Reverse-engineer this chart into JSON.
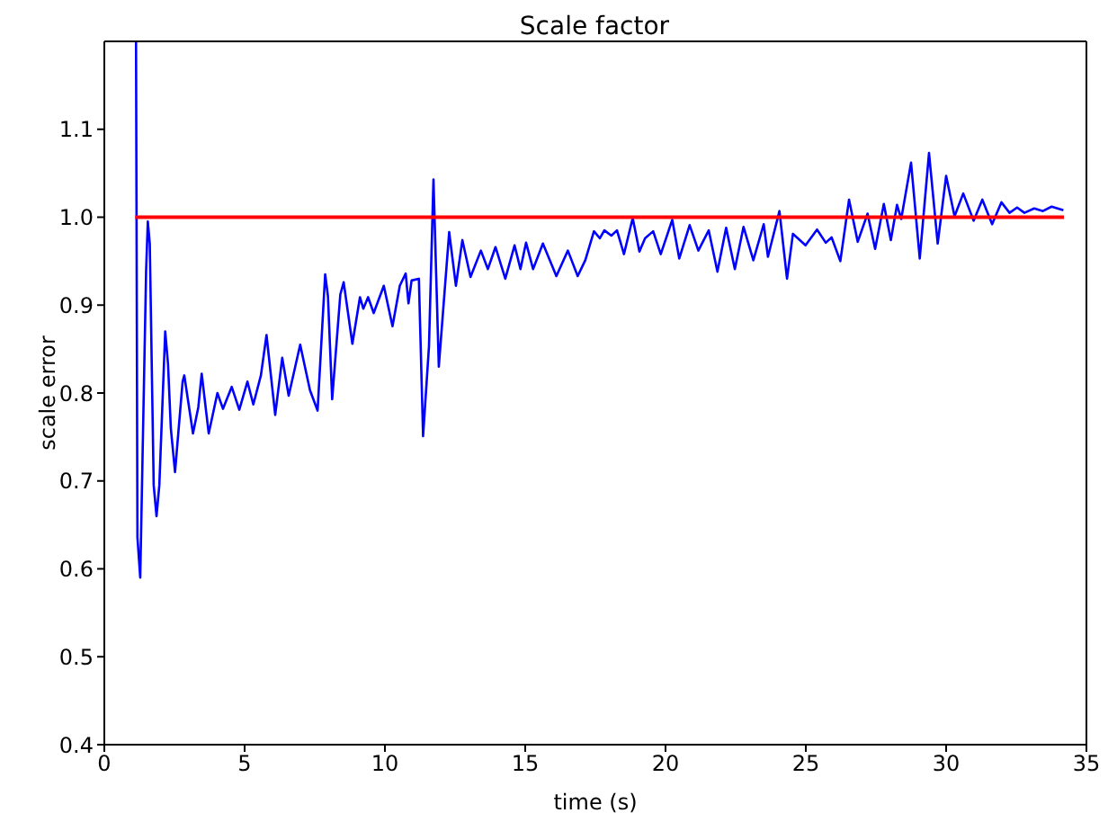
{
  "chart_data": {
    "type": "line",
    "title": "Scale factor",
    "xlabel": "time (s)",
    "ylabel": "scale error",
    "xlim": [
      0,
      35
    ],
    "ylim": [
      0.4,
      1.2
    ],
    "xticks": [
      0,
      5,
      10,
      15,
      20,
      25,
      30,
      35
    ],
    "yticks": [
      0.4,
      0.5,
      0.6,
      0.7,
      0.8,
      0.9,
      {
        "value": 1.0,
        "label": "1.0"
      },
      1.1
    ],
    "series": [
      {
        "color": "#0000ff",
        "x": [
          1.13,
          1.18,
          1.28,
          1.49,
          1.55,
          1.62,
          1.76,
          1.86,
          1.96,
          2.17,
          2.27,
          2.37,
          2.52,
          2.79,
          2.85,
          3.16,
          3.35,
          3.47,
          3.72,
          4.03,
          4.23,
          4.54,
          4.81,
          5.1,
          5.31,
          5.58,
          5.78,
          6.09,
          6.34,
          6.57,
          6.98,
          7.33,
          7.6,
          7.87,
          7.97,
          8.12,
          8.41,
          8.53,
          8.84,
          9.11,
          9.23,
          9.4,
          9.6,
          9.96,
          10.27,
          10.53,
          10.74,
          10.84,
          10.95,
          11.21,
          11.36,
          11.57,
          11.73,
          11.92,
          12.29,
          12.53,
          12.76,
          13.05,
          13.42,
          13.67,
          13.94,
          14.29,
          14.62,
          14.83,
          15.03,
          15.28,
          15.63,
          16.11,
          16.52,
          16.87,
          17.14,
          17.45,
          17.66,
          17.82,
          18.07,
          18.27,
          18.52,
          18.83,
          19.07,
          19.27,
          19.56,
          19.83,
          20.24,
          20.49,
          20.86,
          21.17,
          21.54,
          21.85,
          22.16,
          22.47,
          22.78,
          23.13,
          23.5,
          23.65,
          24.06,
          24.33,
          24.54,
          24.99,
          25.4,
          25.71,
          25.92,
          26.23,
          26.54,
          26.85,
          27.2,
          27.47,
          27.78,
          28.03,
          28.25,
          28.4,
          28.75,
          29.06,
          29.39,
          29.7,
          30.0,
          30.3,
          30.61,
          30.98,
          31.29,
          31.64,
          31.97,
          32.26,
          32.53,
          32.79,
          33.14,
          33.45,
          33.76,
          34.18
        ],
        "values": [
          1.2,
          0.636,
          0.59,
          0.94,
          0.995,
          0.97,
          0.695,
          0.66,
          0.695,
          0.87,
          0.833,
          0.76,
          0.71,
          0.813,
          0.82,
          0.754,
          0.784,
          0.822,
          0.754,
          0.8,
          0.782,
          0.807,
          0.781,
          0.813,
          0.787,
          0.82,
          0.866,
          0.775,
          0.84,
          0.797,
          0.855,
          0.803,
          0.78,
          0.935,
          0.91,
          0.793,
          0.912,
          0.926,
          0.856,
          0.909,
          0.896,
          0.909,
          0.891,
          0.922,
          0.876,
          0.922,
          0.936,
          0.902,
          0.928,
          0.93,
          0.751,
          0.853,
          1.043,
          0.83,
          0.983,
          0.922,
          0.974,
          0.932,
          0.962,
          0.941,
          0.966,
          0.93,
          0.968,
          0.941,
          0.971,
          0.941,
          0.97,
          0.933,
          0.962,
          0.933,
          0.951,
          0.984,
          0.976,
          0.985,
          0.979,
          0.985,
          0.958,
          0.999,
          0.961,
          0.976,
          0.984,
          0.958,
          0.997,
          0.953,
          0.991,
          0.962,
          0.985,
          0.938,
          0.988,
          0.941,
          0.989,
          0.951,
          0.992,
          0.955,
          1.007,
          0.93,
          0.981,
          0.968,
          0.986,
          0.971,
          0.977,
          0.95,
          1.02,
          0.972,
          1.004,
          0.964,
          1.015,
          0.974,
          1.014,
          0.998,
          1.062,
          0.953,
          1.073,
          0.97,
          1.047,
          1.001,
          1.027,
          0.996,
          1.02,
          0.992,
          1.017,
          1.005,
          1.011,
          1.005,
          1.01,
          1.007,
          1.012,
          1.008
        ]
      },
      {
        "color": "#ff0000",
        "x": [
          1.1,
          34.2
        ],
        "values": [
          1.0,
          1.0
        ]
      }
    ]
  }
}
